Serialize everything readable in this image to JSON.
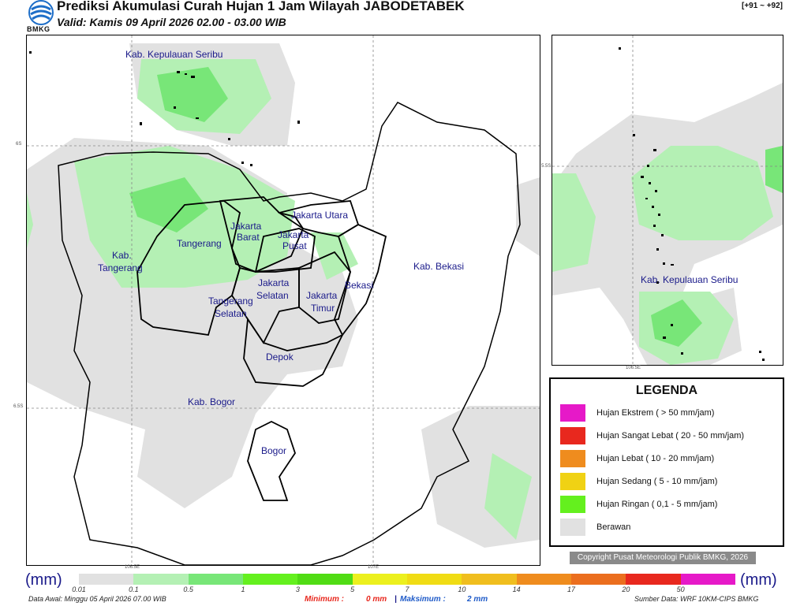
{
  "header": {
    "logo_text": "BMKG",
    "title": "Prediksi Akumulasi Curah Hujan 1 Jam Wilayah JABODETABEK",
    "valid": "Valid: Kamis 09 April 2026 02.00 - 03.00 WIB",
    "code": "[+91 ~ +92]"
  },
  "main_map": {
    "regions": [
      "Kab. Kepulauan Seribu",
      "Jakarta Utara",
      "Jakarta Barat",
      "Jakarta Pusat",
      "Tangerang",
      "Kab. Tangerang",
      "Jakarta Selatan",
      "Jakarta Timur",
      "Bekasi",
      "Kab. Bekasi",
      "Tangerang Selatan",
      "Depok",
      "Kab. Bogor",
      "Bogor"
    ],
    "lat_labels": [
      "6S",
      "6.5S"
    ],
    "lon_labels": [
      "106.5E",
      "107E"
    ]
  },
  "inset_map": {
    "region": "Kab. Kepulauan Seribu",
    "lat_label": "5.5S",
    "lon_label": "106.5E"
  },
  "legend": {
    "title": "LEGENDA",
    "items": [
      {
        "label": "Hujan Ekstrem ( > 50 mm/jam)",
        "color": "#e619c8"
      },
      {
        "label": "Hujan Sangat Lebat ( 20 - 50 mm/jam)",
        "color": "#e8281e"
      },
      {
        "label": "Hujan Lebat ( 10 - 20 mm/jam)",
        "color": "#ef8c1e"
      },
      {
        "label": "Hujan Sedang ( 5 - 10 mm/jam)",
        "color": "#f0d214"
      },
      {
        "label": "Hujan Ringan ( 0,1 - 5 mm/jam)",
        "color": "#64f01e"
      },
      {
        "label": "Berawan",
        "color": "#e1e1e1"
      }
    ]
  },
  "copyright": "Copyright Pusat Meteorologi Publik BMKG, 2026",
  "scale": {
    "unit_left": "(mm)",
    "unit_right": "(mm)",
    "ticks": [
      "0.01",
      "0.1",
      "0.5",
      "1",
      "3",
      "5",
      "7",
      "10",
      "14",
      "17",
      "20",
      "50"
    ],
    "colors": [
      "#e1e1e1",
      "#b4f0b4",
      "#78e678",
      "#64f01e",
      "#50dc14",
      "#ecf01e",
      "#f0dc14",
      "#f0be1e",
      "#ef8c1e",
      "#eb6e1e",
      "#e8281e",
      "#e619c8"
    ]
  },
  "footer": {
    "data_awal": "Data Awal: Minggu 05 April 2026 07.00 WIB",
    "min_label": "Minimum :",
    "min_value": "0 mm",
    "separator": "|",
    "max_label": "Maksimum :",
    "max_value": "2 mm",
    "source": "Sumber Data: WRF 10KM-CIPS BMKG"
  }
}
